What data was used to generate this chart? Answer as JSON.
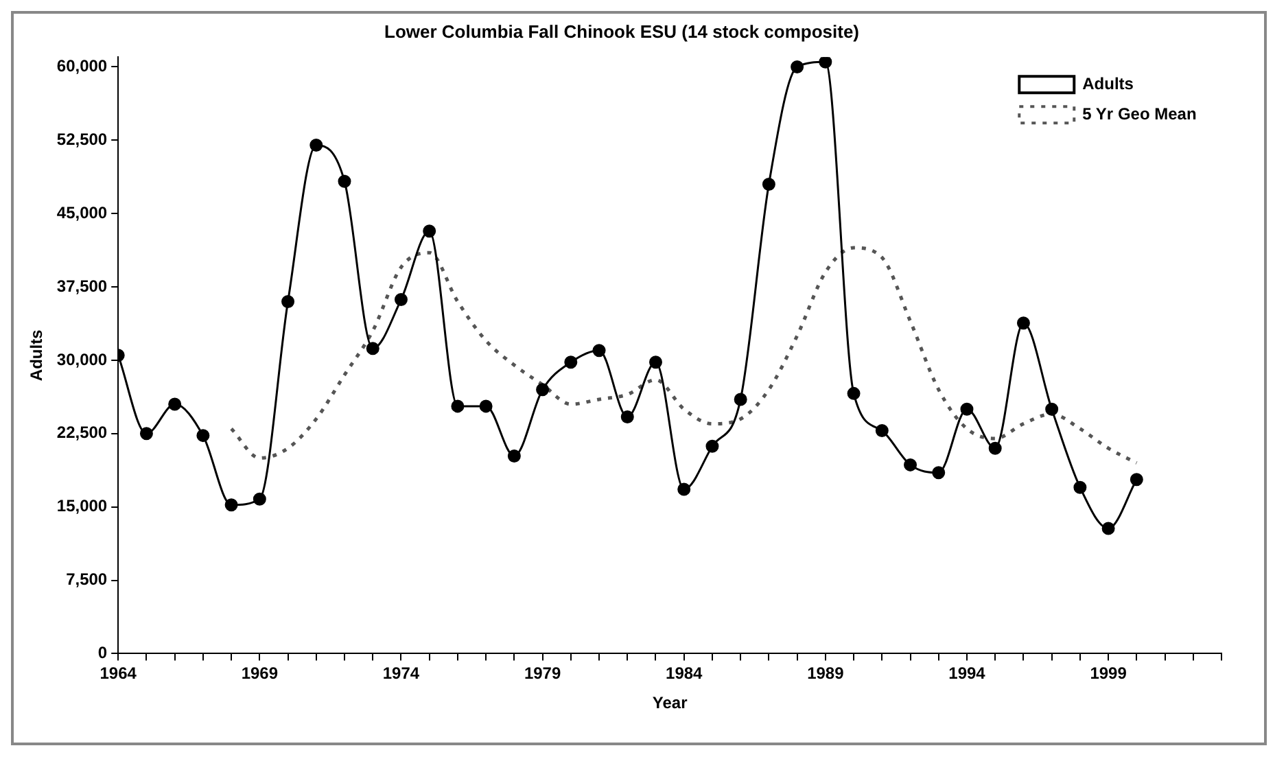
{
  "chart_data": {
    "type": "line",
    "title": "Lower Columbia Fall Chinook ESU (14 stock composite)",
    "xlabel": "Year",
    "ylabel": "Adults",
    "x": [
      1964,
      1965,
      1966,
      1967,
      1968,
      1969,
      1970,
      1971,
      1972,
      1973,
      1974,
      1975,
      1976,
      1977,
      1978,
      1979,
      1980,
      1981,
      1982,
      1983,
      1984,
      1985,
      1986,
      1987,
      1988,
      1989,
      1990,
      1991,
      1992,
      1993,
      1994,
      1995,
      1996,
      1997,
      1998,
      1999,
      2000
    ],
    "series": [
      {
        "name": "Adults",
        "color": "#000000",
        "marker": "circle",
        "line_style": "solid",
        "values": [
          30500,
          22500,
          25500,
          22300,
          15200,
          15800,
          36000,
          52000,
          48300,
          31200,
          36200,
          43200,
          25300,
          25300,
          20200,
          27000,
          29800,
          31000,
          24200,
          29800,
          16800,
          21200,
          26000,
          48000,
          60000,
          60500,
          26600,
          22800,
          19300,
          18500,
          25000,
          21000,
          33800,
          25000,
          17000,
          12800,
          17800
        ]
      },
      {
        "name": "5 Yr Geo Mean",
        "color": "#555555",
        "marker": "none",
        "line_style": "dotted",
        "values": [
          null,
          null,
          null,
          null,
          23000,
          20000,
          21000,
          24000,
          28500,
          33000,
          39500,
          41000,
          36000,
          32000,
          29500,
          27500,
          25500,
          26000,
          26500,
          28000,
          25000,
          23500,
          24000,
          27000,
          32500,
          39000,
          41500,
          40500,
          34000,
          27000,
          23000,
          22000,
          23500,
          24500,
          23000,
          21000,
          19500
        ]
      }
    ],
    "xlim": [
      1964,
      2003
    ],
    "xticks": [
      1964,
      {
        "value": 1965,
        "label": null
      },
      {
        "value": 1966,
        "label": null
      },
      {
        "value": 1967,
        "label": null
      },
      {
        "value": 1968,
        "label": null
      },
      1969,
      {
        "value": 1970,
        "label": null
      },
      {
        "value": 1971,
        "label": null
      },
      {
        "value": 1972,
        "label": null
      },
      {
        "value": 1973,
        "label": null
      },
      1974,
      {
        "value": 1975,
        "label": null
      },
      {
        "value": 1976,
        "label": null
      },
      {
        "value": 1977,
        "label": null
      },
      {
        "value": 1978,
        "label": null
      },
      1979,
      {
        "value": 1980,
        "label": null
      },
      {
        "value": 1981,
        "label": null
      },
      {
        "value": 1982,
        "label": null
      },
      {
        "value": 1983,
        "label": null
      },
      1984,
      {
        "value": 1985,
        "label": null
      },
      {
        "value": 1986,
        "label": null
      },
      {
        "value": 1987,
        "label": null
      },
      {
        "value": 1988,
        "label": null
      },
      1989,
      {
        "value": 1990,
        "label": null
      },
      {
        "value": 1991,
        "label": null
      },
      {
        "value": 1992,
        "label": null
      },
      {
        "value": 1993,
        "label": null
      },
      1994,
      {
        "value": 1995,
        "label": null
      },
      {
        "value": 1996,
        "label": null
      },
      {
        "value": 1997,
        "label": null
      },
      {
        "value": 1998,
        "label": null
      },
      1999,
      {
        "value": 2000,
        "label": null
      },
      {
        "value": 2001,
        "label": null
      },
      {
        "value": 2002,
        "label": null
      },
      {
        "value": 2003,
        "label": null
      }
    ],
    "ylim": [
      0,
      61000
    ],
    "yticks": [
      0,
      {
        "value": 7500,
        "label": "7,500"
      },
      {
        "value": 15000,
        "label": "15,000"
      },
      {
        "value": 22500,
        "label": "22,500"
      },
      {
        "value": 30000,
        "label": "30,000"
      },
      {
        "value": 37500,
        "label": "37,500"
      },
      {
        "value": 45000,
        "label": "45,000"
      },
      {
        "value": 52500,
        "label": "52,500"
      },
      {
        "value": 60000,
        "label": "60,000"
      }
    ],
    "grid": false,
    "legend": "top right"
  }
}
